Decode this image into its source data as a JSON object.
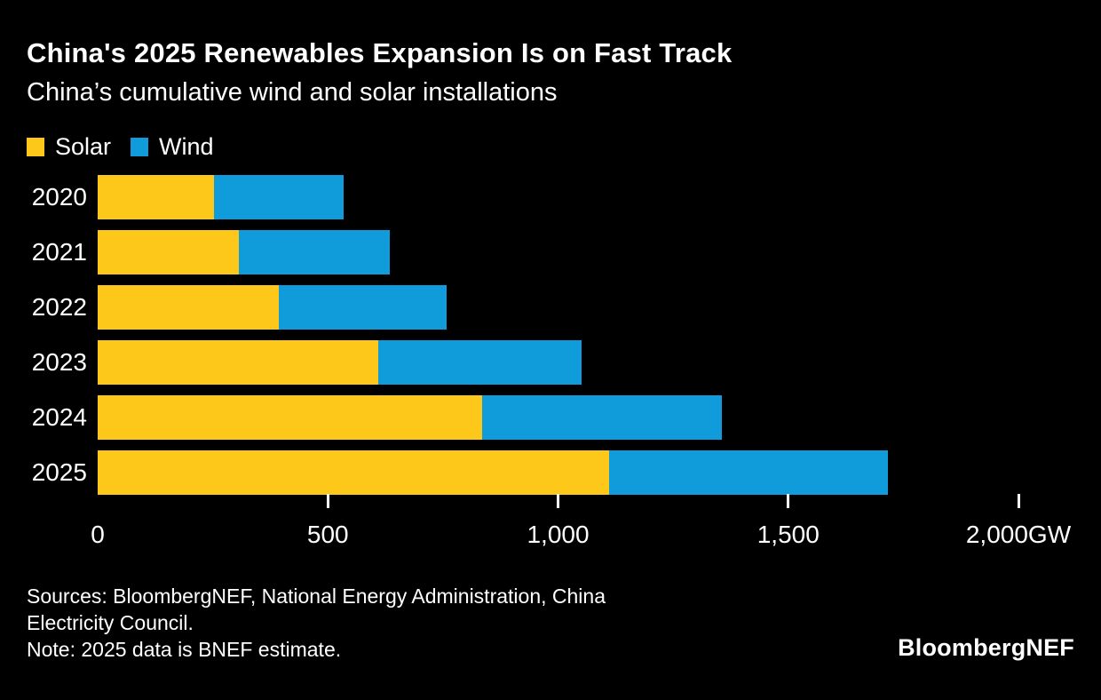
{
  "chart_data": {
    "type": "bar",
    "orientation": "horizontal",
    "stacked": true,
    "title": "China's 2025 Renewables Expansion Is on Fast Track",
    "subtitle": "China’s cumulative wind and solar installations",
    "unit": "GW",
    "categories": [
      "2020",
      "2021",
      "2022",
      "2023",
      "2024",
      "2025"
    ],
    "series": [
      {
        "name": "Solar",
        "color": "#fdc819",
        "values": [
          253,
          306,
          393,
          609,
          835,
          1110
        ]
      },
      {
        "name": "Wind",
        "color": "#109cdb",
        "values": [
          282,
          328,
          365,
          441,
          520,
          605
        ]
      }
    ],
    "xlim": [
      0,
      2000
    ],
    "x_ticks": [
      0,
      500,
      1000,
      1500,
      2000
    ],
    "x_tick_labels": [
      "0",
      "500",
      "1,000",
      "1,500",
      "2,000GW"
    ],
    "grid": false,
    "legend_position": "top-left",
    "background_color": "#000000",
    "text_color": "#ffffff"
  },
  "footer": {
    "source_lines": [
      "Sources: BloombergNEF, National Energy Administration, China",
      "Electricity Council.",
      "Note: 2025 data is BNEF estimate."
    ],
    "logo": "BloombergNEF"
  }
}
